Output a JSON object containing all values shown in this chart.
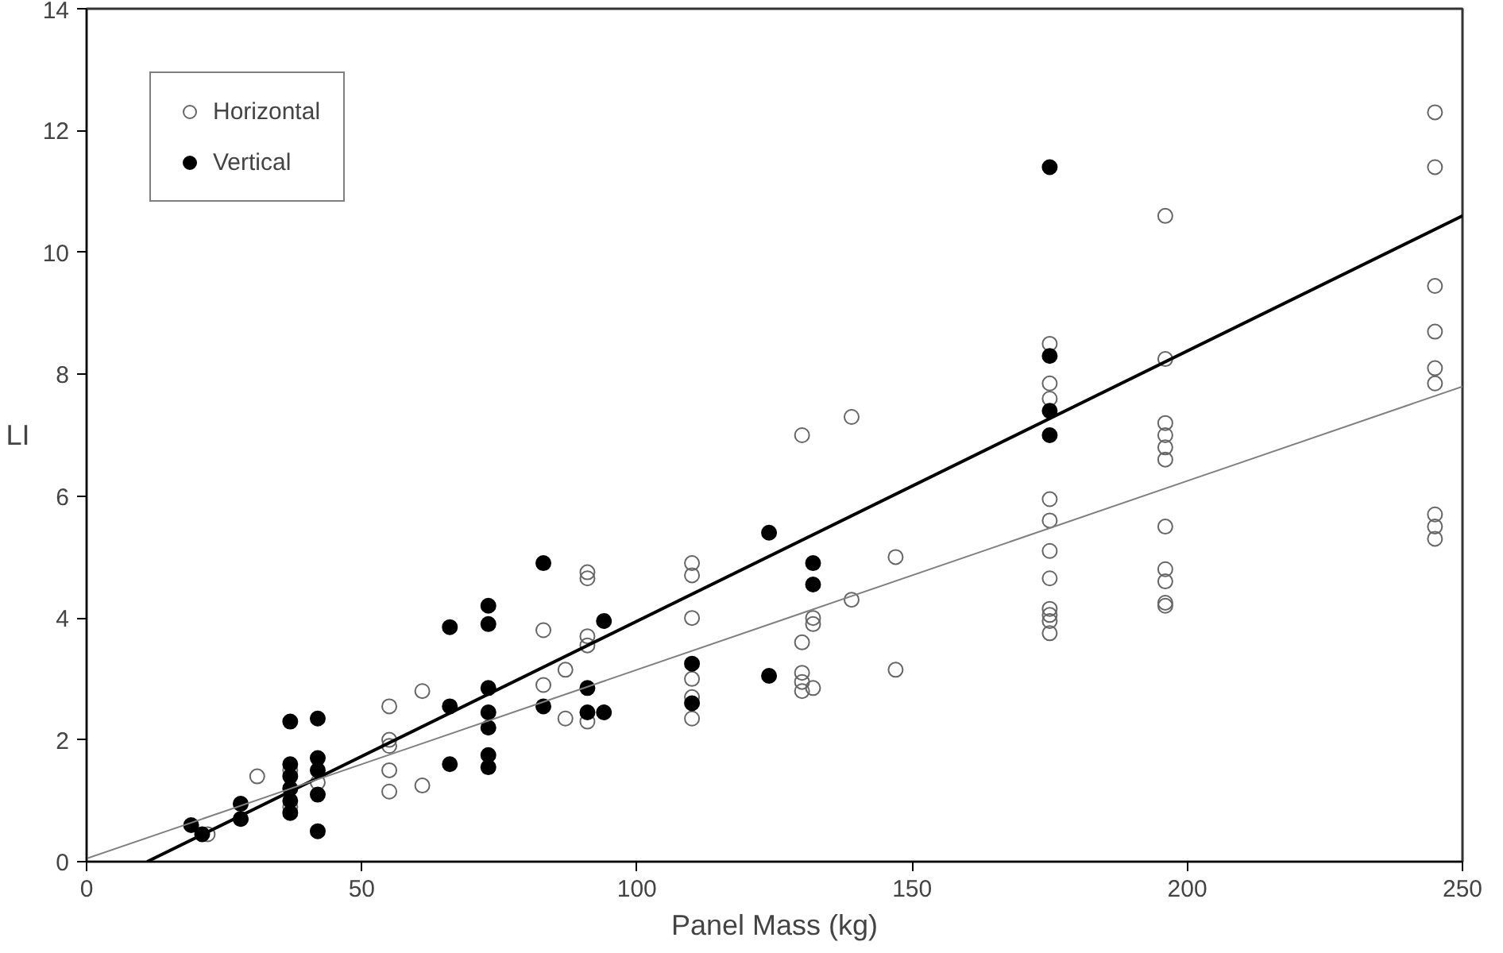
{
  "chart_data": {
    "type": "scatter",
    "xlabel": "Panel Mass (kg)",
    "ylabel": "LI",
    "xlim": [
      0,
      250
    ],
    "ylim": [
      0,
      14
    ],
    "xticks": [
      0,
      50,
      100,
      150,
      200,
      250
    ],
    "yticks": [
      0,
      2,
      4,
      6,
      8,
      10,
      12,
      14
    ],
    "grid": false,
    "legend": "top left",
    "marker": "circle",
    "series": [
      {
        "name": "Horizontal",
        "color": "#666666",
        "x": [
          22,
          28,
          31,
          37,
          37,
          42,
          55,
          55,
          55,
          55,
          55,
          61,
          61,
          83,
          83,
          87,
          87,
          91,
          91,
          91,
          91,
          91,
          110,
          110,
          110,
          110,
          110,
          110,
          130,
          130,
          130,
          130,
          130,
          132,
          132,
          132,
          139,
          139,
          147,
          147,
          175,
          175,
          175,
          175,
          175,
          175,
          175,
          175,
          175,
          175,
          175,
          196,
          196,
          196,
          196,
          196,
          196,
          196,
          196,
          196,
          196,
          196,
          245,
          245,
          245,
          245,
          245,
          245,
          245,
          245,
          245
        ],
        "values": [
          0.45,
          0.7,
          1.4,
          1.5,
          0.9,
          1.3,
          2.55,
          2.0,
          1.9,
          1.5,
          1.15,
          2.8,
          1.25,
          3.8,
          2.9,
          2.35,
          3.15,
          4.75,
          4.65,
          3.7,
          3.55,
          2.3,
          4.9,
          4.7,
          4.0,
          3.0,
          2.7,
          2.35,
          7.0,
          3.6,
          3.1,
          2.95,
          2.8,
          4.0,
          3.9,
          2.85,
          7.3,
          4.3,
          5.0,
          3.15,
          8.5,
          7.85,
          7.6,
          5.95,
          5.6,
          5.1,
          4.65,
          4.15,
          4.05,
          3.95,
          3.75,
          10.6,
          8.25,
          7.2,
          7.0,
          6.8,
          6.6,
          5.5,
          4.8,
          4.6,
          4.25,
          4.2,
          12.3,
          11.4,
          9.45,
          8.7,
          8.1,
          7.85,
          5.7,
          5.5,
          5.3
        ]
      },
      {
        "name": "Vertical",
        "color": "#000000",
        "x": [
          19,
          21,
          28,
          28,
          37,
          37,
          37,
          37,
          37,
          37,
          42,
          42,
          42,
          42,
          42,
          66,
          66,
          66,
          73,
          73,
          73,
          73,
          73,
          73,
          73,
          83,
          83,
          91,
          91,
          94,
          94,
          110,
          110,
          124,
          124,
          132,
          132,
          175,
          175,
          175,
          175
        ],
        "values": [
          0.6,
          0.45,
          0.95,
          0.7,
          2.3,
          1.6,
          1.4,
          1.2,
          1.0,
          0.8,
          2.35,
          1.7,
          1.5,
          1.1,
          0.5,
          3.85,
          2.55,
          1.6,
          4.2,
          3.9,
          2.85,
          2.45,
          2.2,
          1.75,
          1.55,
          4.9,
          2.55,
          2.85,
          2.45,
          3.95,
          2.45,
          3.25,
          2.6,
          5.4,
          3.05,
          4.9,
          4.55,
          11.4,
          8.3,
          7.4,
          7.0
        ]
      },
      {
        "type": "line",
        "marker": "none",
        "color": "#000000",
        "x": [
          11,
          250
        ],
        "values": [
          0,
          10.6
        ]
      },
      {
        "type": "line",
        "marker": "none",
        "color": "#808080",
        "x": [
          0,
          250
        ],
        "values": [
          0.05,
          7.8
        ]
      }
    ]
  }
}
